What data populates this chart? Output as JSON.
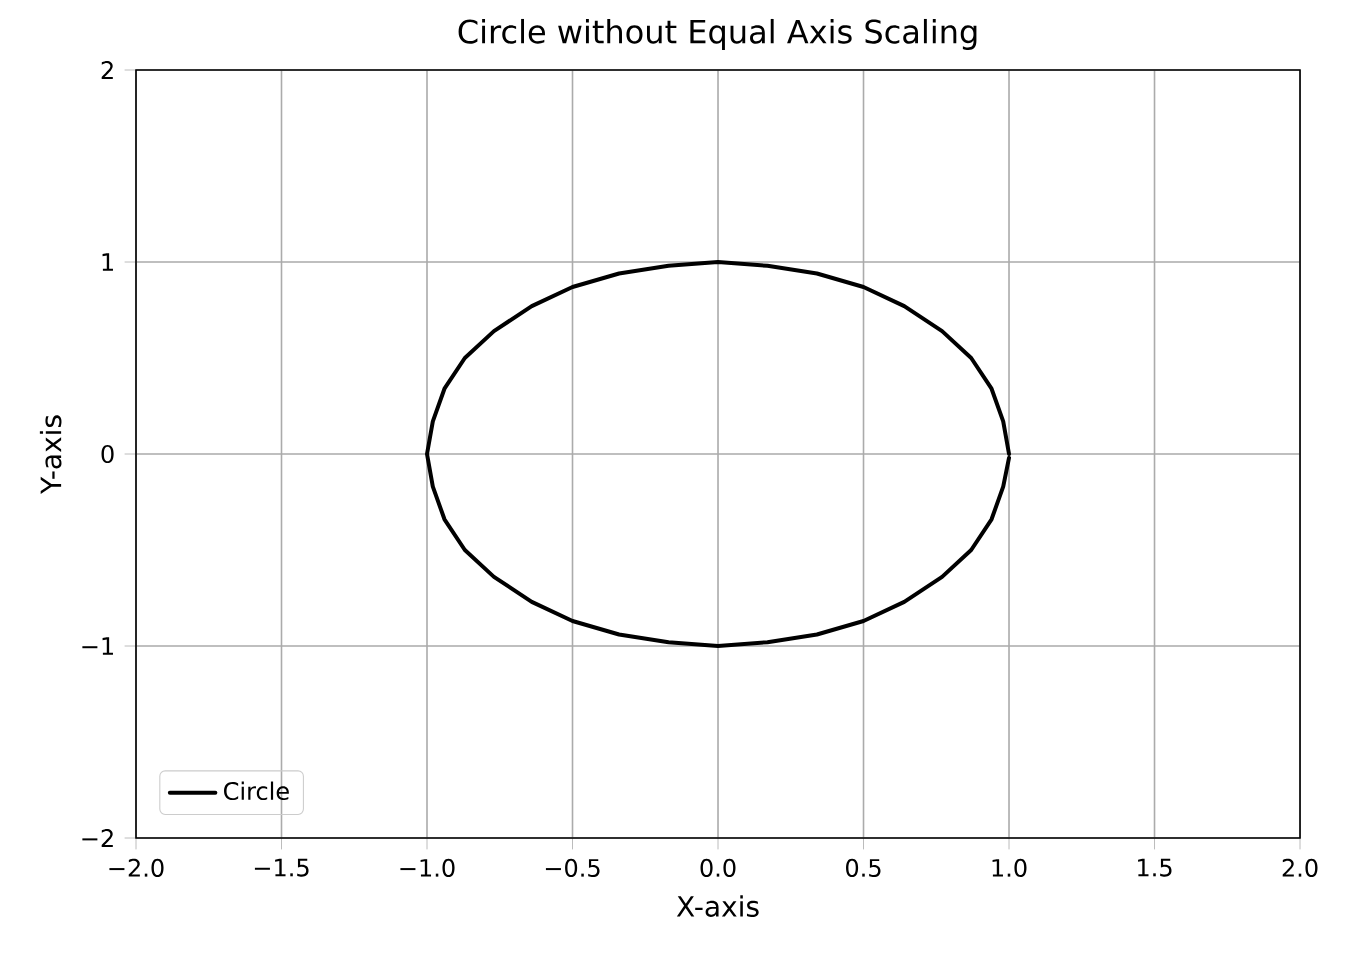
{
  "chart_data": {
    "type": "line",
    "title": "Circle without Equal Axis Scaling",
    "xlabel": "X-axis",
    "ylabel": "Y-axis",
    "xlim": [
      -2,
      2
    ],
    "ylim": [
      -2,
      2
    ],
    "xticks": [
      {
        "value": -2,
        "label": "−2.0"
      },
      {
        "value": -1.5,
        "label": "−1.5"
      },
      {
        "value": -1,
        "label": "−1.0"
      },
      {
        "value": -0.5,
        "label": "−0.5"
      },
      {
        "value": 0,
        "label": "0.0"
      },
      {
        "value": 0.5,
        "label": "0.5"
      },
      {
        "value": 1,
        "label": "1.0"
      },
      {
        "value": 1.5,
        "label": "1.5"
      },
      {
        "value": 2,
        "label": "2.0"
      }
    ],
    "yticks": [
      {
        "value": -2,
        "label": "−2"
      },
      {
        "value": -1,
        "label": "−1"
      },
      0,
      1,
      2
    ],
    "grid": true,
    "legend": "bottom left",
    "series": [
      {
        "name": "Circle",
        "color": "#000000",
        "x": [
          1,
          0.98,
          0.94,
          0.87,
          0.77,
          0.64,
          0.5,
          0.34,
          0.17,
          0,
          -0.17,
          -0.34,
          -0.5,
          -0.64,
          -0.77,
          -0.87,
          -0.94,
          -0.98,
          -1,
          -0.98,
          -0.94,
          -0.87,
          -0.77,
          -0.64,
          -0.5,
          -0.34,
          -0.17,
          0,
          0.17,
          0.34,
          0.5,
          0.64,
          0.77,
          0.87,
          0.94,
          0.98,
          1
        ],
        "values": [
          0,
          0.17,
          0.34,
          0.5,
          0.64,
          0.77,
          0.87,
          0.94,
          0.98,
          1,
          0.98,
          0.94,
          0.87,
          0.77,
          0.64,
          0.5,
          0.34,
          0.17,
          0,
          -0.17,
          -0.34,
          -0.5,
          -0.64,
          -0.77,
          -0.87,
          -0.94,
          -0.98,
          -1,
          -0.98,
          -0.94,
          -0.87,
          -0.77,
          -0.64,
          -0.5,
          -0.34,
          -0.17,
          -0.02
        ]
      }
    ]
  }
}
